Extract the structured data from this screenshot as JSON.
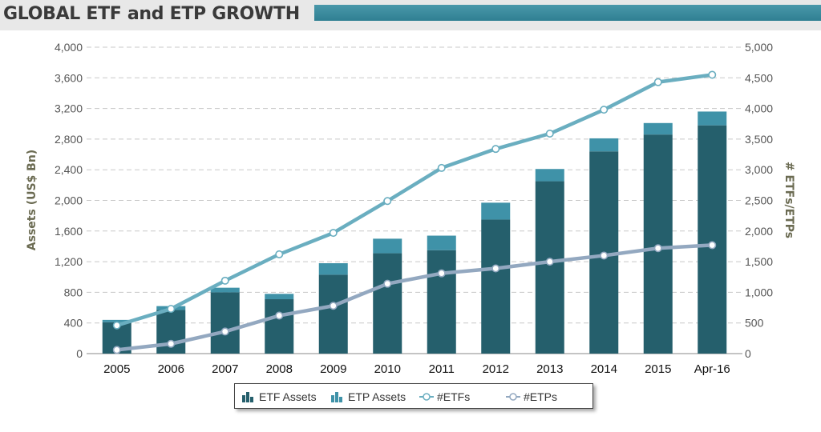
{
  "header": {
    "title": "GLOBAL ETF and ETP GROWTH"
  },
  "colors": {
    "etf_bar": "#255f6c",
    "etp_bar": "#3f92a8",
    "etfs_line": "#6aaec0",
    "etps_line": "#93a8c0",
    "grid": "#c8c8c8",
    "title_bar": "#3b8ca0"
  },
  "chart_data": {
    "type": "bar",
    "title": "GLOBAL ETF and ETP GROWTH",
    "categories": [
      "2005",
      "2006",
      "2007",
      "2008",
      "2009",
      "2010",
      "2011",
      "2012",
      "2013",
      "2014",
      "2015",
      "Apr-16"
    ],
    "stacked": true,
    "series": [
      {
        "name": "ETF Assets",
        "type": "bar",
        "axis": "left",
        "values": [
          410,
          570,
          800,
          710,
          1030,
          1310,
          1350,
          1750,
          2250,
          2640,
          2860,
          2980
        ]
      },
      {
        "name": "ETP Assets",
        "type": "bar",
        "axis": "left",
        "values": [
          30,
          50,
          60,
          70,
          150,
          190,
          190,
          220,
          160,
          170,
          150,
          180
        ]
      },
      {
        "name": "#ETFs",
        "type": "line",
        "axis": "right",
        "values": [
          460,
          730,
          1190,
          1620,
          1970,
          2490,
          3030,
          3340,
          3590,
          3980,
          4430,
          4550
        ]
      },
      {
        "name": "#ETPs",
        "type": "line",
        "axis": "right",
        "values": [
          60,
          160,
          360,
          620,
          780,
          1140,
          1310,
          1390,
          1500,
          1600,
          1720,
          1770
        ]
      }
    ],
    "ylabel": "Assets (US$ Bn)",
    "ylim": [
      0,
      4000
    ],
    "yticks": [
      "4,000",
      "3,600",
      "3,200",
      "2,800",
      "2,400",
      "2,000",
      "1,600",
      "1,200",
      "800",
      "400",
      "0"
    ],
    "y2label": "# ETFs/ETPs",
    "y2lim": [
      0,
      5000
    ],
    "y2ticks": [
      "5,000",
      "4,500",
      "4,000",
      "3,500",
      "3,000",
      "2,500",
      "2,000",
      "1,500",
      "1,000",
      "500",
      "0"
    ],
    "grid": true,
    "legend_position": "bottom-center"
  },
  "legend": [
    {
      "label": "ETF Assets",
      "icon": "bar-chart-icon"
    },
    {
      "label": "ETP Assets",
      "icon": "bar-chart-icon"
    },
    {
      "label": "#ETFs",
      "icon": "line-marker-icon"
    },
    {
      "label": "#ETPs",
      "icon": "line-marker-icon"
    }
  ]
}
